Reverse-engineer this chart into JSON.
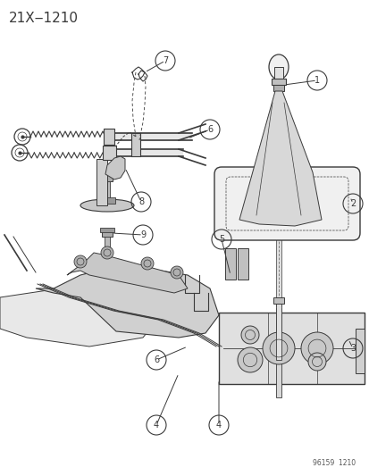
{
  "title": "21X‒1210",
  "background_color": "#ffffff",
  "line_color": "#3a3a3a",
  "watermark": "96159  1210",
  "figsize": [
    4.14,
    5.33
  ],
  "dpi": 100
}
